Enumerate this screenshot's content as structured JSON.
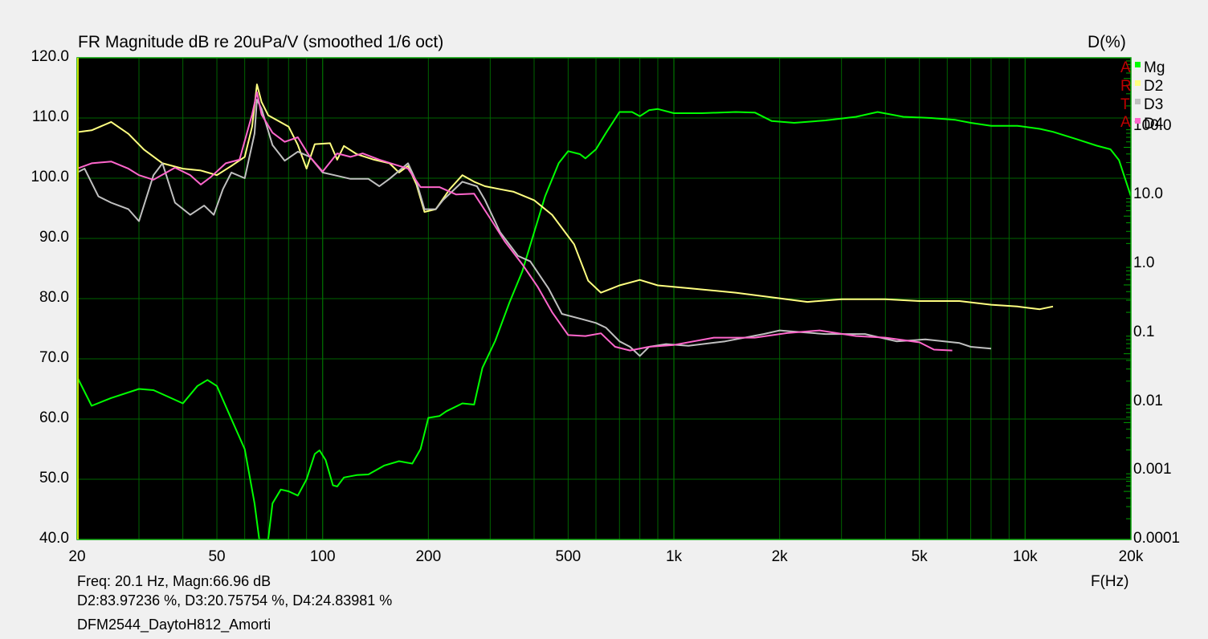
{
  "header": {
    "title": "FR Magnitude dB re 20uPa/V (smoothed 1/6 oct)",
    "right_axis_label": "D(%)"
  },
  "watermark": [
    "A",
    "R",
    "T",
    "A"
  ],
  "legend": [
    {
      "label": "Mg",
      "color": "#00ff00"
    },
    {
      "label": "D2",
      "color": "#ffff80"
    },
    {
      "label": "D3",
      "color": "#c0c0c0"
    },
    {
      "label": "D4",
      "color": "#ff66cc"
    }
  ],
  "readout": {
    "line1": "Freq: 20.1 Hz, Magn:66.96 dB",
    "line2": "D2:83.97236 %, D3:20.75754 %, D4:24.83981 %",
    "filename": "DFM2544_DaytoH812_Amorti"
  },
  "colors": {
    "plot_bg": "#000000",
    "grid": "#006400",
    "frame": "#00a000",
    "page_bg": "#f0f0f0"
  },
  "chart_data": {
    "type": "line",
    "title": "FR Magnitude dB re 20uPa/V (smoothed 1/6 oct)",
    "xlabel": "F(Hz)",
    "ylabel": "dB",
    "ylabel_right": "D(%)",
    "xscale": "log",
    "xlim": [
      20,
      20000
    ],
    "ylim": [
      40,
      120
    ],
    "ylim_right": [
      0.0001,
      1000
    ],
    "yscale_right": "log",
    "grid": true,
    "legend_position": "right",
    "x_ticks": [
      {
        "v": 20,
        "label": "20"
      },
      {
        "v": 50,
        "label": "50"
      },
      {
        "v": 100,
        "label": "100"
      },
      {
        "v": 200,
        "label": "200"
      },
      {
        "v": 500,
        "label": "500"
      },
      {
        "v": 1000,
        "label": "1k"
      },
      {
        "v": 2000,
        "label": "2k"
      },
      {
        "v": 5000,
        "label": "5k"
      },
      {
        "v": 10000,
        "label": "10k"
      },
      {
        "v": 20000,
        "label": "20k"
      }
    ],
    "y_ticks": [
      "120.0",
      "110.0",
      "100.0",
      "90.0",
      "80.0",
      "70.0",
      "60.0",
      "50.0",
      "40.0"
    ],
    "y_ticks_right": [
      "100.0",
      "10.0",
      "1.0",
      "0.1",
      "0.01",
      "0.001",
      "0.0001"
    ],
    "series": [
      {
        "name": "Mg",
        "axis": "left",
        "unit": "dB",
        "color": "#00ff00",
        "points": [
          [
            20,
            67
          ],
          [
            22,
            62.2
          ],
          [
            25,
            63.5
          ],
          [
            30,
            65
          ],
          [
            33,
            64.8
          ],
          [
            40,
            62.6
          ],
          [
            44,
            65.5
          ],
          [
            47,
            66.5
          ],
          [
            50,
            65.5
          ],
          [
            55,
            60
          ],
          [
            60,
            55
          ],
          [
            64,
            46
          ],
          [
            66,
            40
          ],
          [
            70,
            40
          ],
          [
            72,
            46
          ],
          [
            76,
            48.3
          ],
          [
            80,
            48
          ],
          [
            85,
            47.3
          ],
          [
            90,
            50
          ],
          [
            95,
            54.2
          ],
          [
            98,
            54.8
          ],
          [
            102,
            53.2
          ],
          [
            107,
            49
          ],
          [
            110,
            48.8
          ],
          [
            115,
            50.3
          ],
          [
            125,
            50.7
          ],
          [
            135,
            50.8
          ],
          [
            150,
            52.3
          ],
          [
            165,
            53
          ],
          [
            180,
            52.6
          ],
          [
            190,
            55
          ],
          [
            200,
            60.2
          ],
          [
            215,
            60.5
          ],
          [
            225,
            61.3
          ],
          [
            250,
            62.6
          ],
          [
            270,
            62.4
          ],
          [
            285,
            68.5
          ],
          [
            310,
            73
          ],
          [
            340,
            79.3
          ],
          [
            370,
            84.5
          ],
          [
            400,
            91
          ],
          [
            430,
            97
          ],
          [
            470,
            102.5
          ],
          [
            500,
            104.5
          ],
          [
            540,
            104
          ],
          [
            560,
            103.3
          ],
          [
            600,
            104.8
          ],
          [
            640,
            107.5
          ],
          [
            700,
            111
          ],
          [
            760,
            111
          ],
          [
            800,
            110.3
          ],
          [
            850,
            111.3
          ],
          [
            900,
            111.5
          ],
          [
            1000,
            110.8
          ],
          [
            1200,
            110.8
          ],
          [
            1500,
            111
          ],
          [
            1700,
            110.9
          ],
          [
            1900,
            109.5
          ],
          [
            2200,
            109.2
          ],
          [
            2700,
            109.6
          ],
          [
            3300,
            110.2
          ],
          [
            3800,
            111
          ],
          [
            4500,
            110.2
          ],
          [
            5400,
            110
          ],
          [
            6300,
            109.7
          ],
          [
            7000,
            109.2
          ],
          [
            8000,
            108.7
          ],
          [
            9500,
            108.7
          ],
          [
            11000,
            108.2
          ],
          [
            12000,
            107.7
          ],
          [
            14000,
            106.5
          ],
          [
            16000,
            105.4
          ],
          [
            17500,
            104.8
          ],
          [
            18500,
            103
          ],
          [
            20000,
            97
          ]
        ]
      },
      {
        "name": "D2",
        "axis": "right",
        "unit": "%",
        "color": "#ffff80",
        "points": [
          [
            20,
            83.2
          ],
          [
            22,
            88.5
          ],
          [
            25,
            117
          ],
          [
            28,
            78.5
          ],
          [
            31,
            46.4
          ],
          [
            35,
            29.3
          ],
          [
            40,
            24.5
          ],
          [
            45,
            23
          ],
          [
            50,
            19.7
          ],
          [
            55,
            26.8
          ],
          [
            60,
            36.3
          ],
          [
            63,
            100
          ],
          [
            65,
            411
          ],
          [
            67,
            229
          ],
          [
            70,
            146
          ],
          [
            80,
            100
          ],
          [
            85,
            54.1
          ],
          [
            90,
            24.5
          ],
          [
            95,
            55.6
          ],
          [
            105,
            57.4
          ],
          [
            110,
            33.1
          ],
          [
            115,
            52.4
          ],
          [
            125,
            39.8
          ],
          [
            140,
            33.1
          ],
          [
            155,
            29.3
          ],
          [
            165,
            21.5
          ],
          [
            175,
            26.8
          ],
          [
            185,
            14.4
          ],
          [
            195,
            5.75
          ],
          [
            210,
            6.31
          ],
          [
            230,
            12.3
          ],
          [
            250,
            19.7
          ],
          [
            270,
            15.8
          ],
          [
            290,
            13.6
          ],
          [
            320,
            12.3
          ],
          [
            350,
            11.3
          ],
          [
            400,
            8.51
          ],
          [
            450,
            5.23
          ],
          [
            520,
            1.95
          ],
          [
            570,
            0.575
          ],
          [
            620,
            0.386
          ],
          [
            700,
            0.493
          ],
          [
            800,
            0.591
          ],
          [
            900,
            0.493
          ],
          [
            1100,
            0.449
          ],
          [
            1500,
            0.386
          ],
          [
            2000,
            0.32
          ],
          [
            2400,
            0.283
          ],
          [
            3000,
            0.31
          ],
          [
            4000,
            0.31
          ],
          [
            5000,
            0.292
          ],
          [
            6500,
            0.292
          ],
          [
            8000,
            0.258
          ],
          [
            9500,
            0.243
          ],
          [
            11000,
            0.222
          ],
          [
            12000,
            0.243
          ]
        ]
      },
      {
        "name": "D3",
        "axis": "right",
        "unit": "%",
        "color": "#c0c0c0",
        "points": [
          [
            20,
            21.5
          ],
          [
            21,
            24.5
          ],
          [
            23,
            9.7
          ],
          [
            25,
            7.83
          ],
          [
            28,
            6.31
          ],
          [
            30,
            4.22
          ],
          [
            33,
            19.7
          ],
          [
            35,
            29.3
          ],
          [
            38,
            7.83
          ],
          [
            42,
            5.23
          ],
          [
            46,
            7.11
          ],
          [
            49,
            5.23
          ],
          [
            52,
            12.3
          ],
          [
            55,
            21.5
          ],
          [
            60,
            17.8
          ],
          [
            64,
            79
          ],
          [
            65,
            247
          ],
          [
            67,
            182
          ],
          [
            72,
            53.8
          ],
          [
            78,
            31.9
          ],
          [
            85,
            43.3
          ],
          [
            92,
            36.3
          ],
          [
            100,
            21.5
          ],
          [
            108,
            19.7
          ],
          [
            120,
            17.4
          ],
          [
            135,
            17.4
          ],
          [
            145,
            13.6
          ],
          [
            155,
            17.4
          ],
          [
            175,
            29.3
          ],
          [
            185,
            15.8
          ],
          [
            195,
            6.31
          ],
          [
            210,
            6.31
          ],
          [
            220,
            8.51
          ],
          [
            250,
            15.8
          ],
          [
            275,
            13.6
          ],
          [
            290,
            8.51
          ],
          [
            320,
            2.93
          ],
          [
            360,
            1.32
          ],
          [
            390,
            1.1
          ],
          [
            440,
            0.441
          ],
          [
            480,
            0.19
          ],
          [
            550,
            0.158
          ],
          [
            600,
            0.14
          ],
          [
            640,
            0.12
          ],
          [
            700,
            0.0758
          ],
          [
            750,
            0.0631
          ],
          [
            800,
            0.0464
          ],
          [
            850,
            0.0631
          ],
          [
            950,
            0.0691
          ],
          [
            1100,
            0.0652
          ],
          [
            1400,
            0.0758
          ],
          [
            1800,
            0.0968
          ],
          [
            2000,
            0.109
          ],
          [
            2300,
            0.103
          ],
          [
            2700,
            0.0968
          ],
          [
            3500,
            0.0968
          ],
          [
            4300,
            0.0758
          ],
          [
            5200,
            0.0807
          ],
          [
            6500,
            0.0715
          ],
          [
            7000,
            0.0631
          ],
          [
            8000,
            0.0594
          ]
        ]
      },
      {
        "name": "D4",
        "axis": "right",
        "unit": "%",
        "color": "#ff66cc",
        "points": [
          [
            20,
            24.5
          ],
          [
            22,
            29.3
          ],
          [
            25,
            31.1
          ],
          [
            28,
            24.5
          ],
          [
            30,
            19.7
          ],
          [
            33,
            16.9
          ],
          [
            38,
            25.3
          ],
          [
            42,
            19.7
          ],
          [
            45,
            14.4
          ],
          [
            48,
            18.4
          ],
          [
            53,
            29.3
          ],
          [
            58,
            33.1
          ],
          [
            63,
            150
          ],
          [
            65,
            315
          ],
          [
            67,
            150
          ],
          [
            72,
            81.6
          ],
          [
            78,
            60.1
          ],
          [
            85,
            70
          ],
          [
            92,
            36.3
          ],
          [
            100,
            22.2
          ],
          [
            110,
            40.8
          ],
          [
            120,
            36.3
          ],
          [
            130,
            40.8
          ],
          [
            145,
            33.1
          ],
          [
            160,
            28.2
          ],
          [
            175,
            24.5
          ],
          [
            190,
            13.2
          ],
          [
            215,
            13.2
          ],
          [
            240,
            10.3
          ],
          [
            270,
            10.6
          ],
          [
            300,
            4.64
          ],
          [
            330,
            2.15
          ],
          [
            370,
            1.0
          ],
          [
            410,
            0.464
          ],
          [
            450,
            0.201
          ],
          [
            500,
            0.0934
          ],
          [
            560,
            0.0904
          ],
          [
            620,
            0.0991
          ],
          [
            680,
            0.0631
          ],
          [
            750,
            0.0557
          ],
          [
            850,
            0.0631
          ],
          [
            1000,
            0.0672
          ],
          [
            1300,
            0.0858
          ],
          [
            1700,
            0.0858
          ],
          [
            2100,
            0.1
          ],
          [
            2600,
            0.109
          ],
          [
            3300,
            0.0904
          ],
          [
            4000,
            0.0858
          ],
          [
            5000,
            0.0733
          ],
          [
            5500,
            0.0575
          ],
          [
            6200,
            0.0557
          ]
        ]
      }
    ]
  }
}
